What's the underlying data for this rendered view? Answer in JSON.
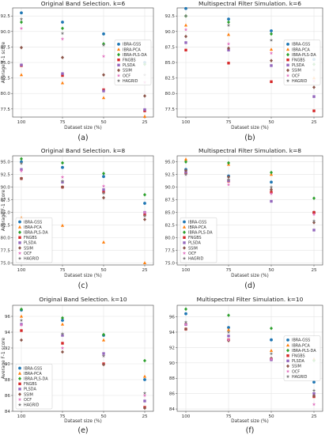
{
  "style": {
    "colors": [
      "#1f77b4",
      "#ff7f0e",
      "#2ca02c",
      "#d62728",
      "#9467bd",
      "#8c564b",
      "#e377c2",
      "#7f7f7f"
    ],
    "markers": [
      "circle",
      "triangle",
      "diamond",
      "square",
      "square",
      "diamond",
      "star",
      "star"
    ]
  },
  "chart_data": [
    {
      "type": "scatter",
      "title": "Original Band Selection. k=6",
      "caption": "(a)",
      "xlabel": "Dataset size (%)",
      "ylabel": "Average F-1 score",
      "categories": [
        "100",
        "75",
        "50",
        "25"
      ],
      "ylim": [
        76.2,
        93.8
      ],
      "yticks": [
        77.5,
        80.0,
        82.5,
        85.0,
        87.5,
        90.0,
        92.5
      ],
      "legend": "right",
      "grid": true,
      "series": [
        {
          "name": "IBRA-GSS",
          "values": [
            93.0,
            91.5,
            89.6,
            85.0
          ]
        },
        {
          "name": "IBRA-PCA",
          "values": [
            83.0,
            81.7,
            79.3,
            76.3
          ]
        },
        {
          "name": "IBRA-PLS-DA",
          "values": [
            91.5,
            90.5,
            88.0,
            84.7
          ]
        },
        {
          "name": "FNGBS",
          "values": [
            84.5,
            82.9,
            80.6,
            77.2
          ]
        },
        {
          "name": "PLSDA",
          "values": [
            84.6,
            83.2,
            80.4,
            77.4
          ]
        },
        {
          "name": "SSIM",
          "values": [
            87.4,
            85.8,
            83.0,
            79.6
          ]
        },
        {
          "name": "OCF",
          "values": [
            90.5,
            88.8,
            86.0,
            81.8
          ]
        },
        {
          "name": "HAGRID",
          "values": [
            92.0,
            89.7,
            87.8,
            83.0
          ]
        }
      ]
    },
    {
      "type": "scatter",
      "title": "Multispectral Filter Simulation. k=6",
      "caption": "(b)",
      "xlabel": "Dataset size (%)",
      "ylabel": "",
      "categories": [
        "100",
        "75",
        "50",
        "25"
      ],
      "ylim": [
        76.2,
        93.8
      ],
      "yticks": [
        77.5,
        80.0,
        82.5,
        85.0,
        87.5,
        90.0,
        92.5
      ],
      "legend": "right",
      "grid": true,
      "series": [
        {
          "name": "IBRA-GSS",
          "values": [
            93.7,
            92.0,
            90.1,
            85.5
          ]
        },
        {
          "name": "IBRA-PCA",
          "values": [
            91.0,
            89.5,
            87.1,
            82.5
          ]
        },
        {
          "name": "IBRA-PLS-DA",
          "values": [
            92.5,
            91.5,
            89.6,
            84.7
          ]
        },
        {
          "name": "FNGBS",
          "values": [
            87.0,
            84.9,
            81.9,
            77.2
          ]
        },
        {
          "name": "PLSDA",
          "values": [
            88.2,
            87.0,
            84.5,
            79.5
          ]
        },
        {
          "name": "SSIM",
          "values": [
            89.2,
            87.3,
            85.3,
            81.0
          ]
        },
        {
          "name": "OCF",
          "values": [
            90.3,
            88.0,
            86.5,
            82.0
          ]
        },
        {
          "name": "HAGRID",
          "values": [
            92.5,
            91.0,
            88.6,
            83.8
          ]
        }
      ]
    },
    {
      "type": "scatter",
      "title": "Original Band Selection. k=8",
      "caption": "(c)",
      "xlabel": "Dataset size (%)",
      "ylabel": "Average F-1 score",
      "categories": [
        "100",
        "75",
        "50",
        "25"
      ],
      "ylim": [
        74.6,
        96.2
      ],
      "yticks": [
        75.0,
        77.5,
        80.0,
        82.5,
        85.0,
        87.5,
        90.0,
        92.5,
        95.0
      ],
      "legend": "left",
      "grid": true,
      "series": [
        {
          "name": "IBRA-GSS",
          "values": [
            95.0,
            93.9,
            92.1,
            86.8
          ]
        },
        {
          "name": "IBRA-PCA",
          "values": [
            83.9,
            82.4,
            79.1,
            75.0
          ]
        },
        {
          "name": "IBRA-PLS-DA",
          "values": [
            95.6,
            94.8,
            92.7,
            88.5
          ]
        },
        {
          "name": "FNGBS",
          "values": [
            91.7,
            90.0,
            89.0,
            84.5
          ]
        },
        {
          "name": "PLSDA",
          "values": [
            93.5,
            91.0,
            89.5,
            85.0
          ]
        },
        {
          "name": "SSIM",
          "values": [
            91.7,
            90.0,
            87.9,
            83.6
          ]
        },
        {
          "name": "OCF",
          "values": [
            93.2,
            92.0,
            90.2,
            85.0
          ]
        },
        {
          "name": "HAGRID",
          "values": [
            94.7,
            91.2,
            88.8,
            84.3
          ]
        }
      ]
    },
    {
      "type": "scatter",
      "title": "Multispectral Filter Simulation. k=8",
      "caption": "(d)",
      "xlabel": "Dataset size (%)",
      "ylabel": "",
      "categories": [
        "100",
        "75",
        "50",
        "25"
      ],
      "ylim": [
        74.6,
        96.2
      ],
      "yticks": [
        75.0,
        77.5,
        80.0,
        82.5,
        85.0,
        87.5,
        90.0,
        92.5,
        95.0
      ],
      "legend": "left",
      "grid": true,
      "series": [
        {
          "name": "IBRA-GSS",
          "values": [
            93.5,
            92.2,
            91.0,
            85.0
          ]
        },
        {
          "name": "IBRA-PCA",
          "values": [
            95.5,
            94.5,
            92.5,
            85.0
          ]
        },
        {
          "name": "IBRA-PLS-DA",
          "values": [
            95.0,
            94.8,
            92.9,
            87.8
          ]
        },
        {
          "name": "FNGBS",
          "values": [
            92.8,
            91.2,
            89.0,
            85.0
          ]
        },
        {
          "name": "PLSDA",
          "values": [
            93.0,
            91.3,
            87.2,
            81.5
          ]
        },
        {
          "name": "SSIM",
          "values": [
            93.3,
            92.0,
            89.5,
            83.0
          ]
        },
        {
          "name": "OCF",
          "values": [
            92.5,
            90.5,
            88.7,
            84.6
          ]
        },
        {
          "name": "HAGRID",
          "values": [
            92.5,
            91.5,
            90.0,
            83.3
          ]
        }
      ]
    },
    {
      "type": "scatter",
      "title": "Original Band Selection. k=10",
      "caption": "(e)",
      "xlabel": "Dataset size (%)",
      "ylabel": "Average F-1 score",
      "categories": [
        "100",
        "75",
        "50",
        "25"
      ],
      "ylim": [
        84.0,
        97.4
      ],
      "yticks": [
        84,
        86,
        88,
        90,
        92,
        94,
        96
      ],
      "legend": "left",
      "grid": true,
      "series": [
        {
          "name": "IBRA-GSS",
          "values": [
            96.8,
            95.5,
            93.6,
            88.0
          ]
        },
        {
          "name": "IBRA-PCA",
          "values": [
            96.0,
            95.0,
            93.0,
            88.4
          ]
        },
        {
          "name": "IBRA-PLS-DA",
          "values": [
            96.9,
            95.8,
            93.7,
            90.4
          ]
        },
        {
          "name": "FNGBS",
          "values": [
            94.2,
            92.6,
            90.0,
            84.5
          ]
        },
        {
          "name": "PLSDA",
          "values": [
            95.0,
            93.6,
            91.3,
            85.3
          ]
        },
        {
          "name": "SSIM",
          "values": [
            93.0,
            91.5,
            89.9,
            84.4
          ]
        },
        {
          "name": "OCF",
          "values": [
            94.9,
            92.0,
            91.0,
            86.0
          ]
        },
        {
          "name": "HAGRID",
          "values": [
            95.5,
            93.8,
            91.0,
            86.3
          ]
        }
      ]
    },
    {
      "type": "scatter",
      "title": "Multispectral Filter Simulation. k=10",
      "caption": "(f)",
      "xlabel": "Dataset size (%)",
      "ylabel": "",
      "categories": [
        "100",
        "75",
        "50",
        "25"
      ],
      "ylim": [
        83.7,
        97.5
      ],
      "yticks": [
        84,
        86,
        88,
        90,
        92,
        94,
        96
      ],
      "legend": "right",
      "grid": true,
      "series": [
        {
          "name": "IBRA-GSS",
          "values": [
            96.4,
            94.6,
            93.0,
            87.5
          ]
        },
        {
          "name": "IBRA-PCA",
          "values": [
            95.2,
            94.3,
            91.6,
            90.5
          ]
        },
        {
          "name": "IBRA-PLS-DA",
          "values": [
            97.0,
            96.2,
            94.5,
            90.3
          ]
        },
        {
          "name": "FNGBS",
          "values": [
            94.4,
            93.0,
            90.5,
            85.6
          ]
        },
        {
          "name": "PLSDA",
          "values": [
            95.0,
            93.5,
            90.4,
            86.0
          ]
        },
        {
          "name": "SSIM",
          "values": [
            94.4,
            92.9,
            90.6,
            85.7
          ]
        },
        {
          "name": "OCF",
          "values": [
            95.0,
            93.0,
            90.5,
            84.6
          ]
        },
        {
          "name": "HAGRID",
          "values": [
            95.3,
            94.0,
            91.2,
            86.4
          ]
        }
      ]
    }
  ]
}
